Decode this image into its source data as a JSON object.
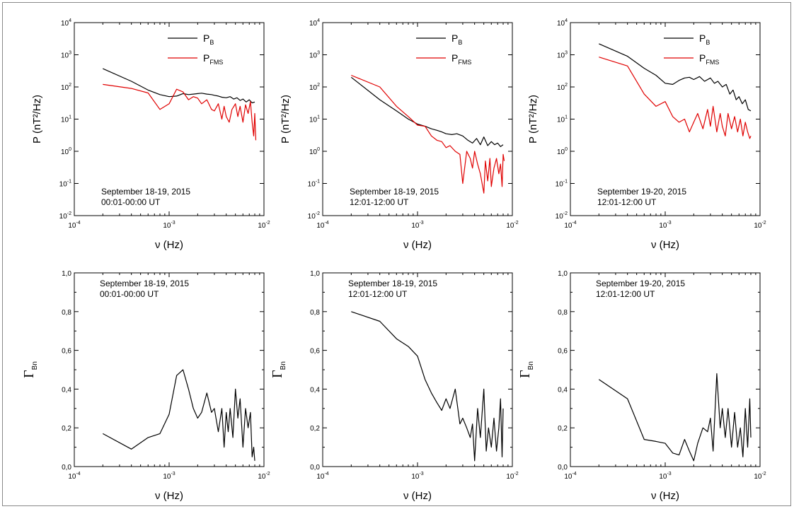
{
  "colors": {
    "frame": "#888888",
    "axis": "#000000",
    "P_B": "#000000",
    "P_FMS": "#e00000",
    "gamma": "#000000"
  },
  "chart_data": [
    {
      "type": "line",
      "panel": "top-left",
      "ylabel": "P (nT²/Hz)",
      "xlabel": "ν (Hz)",
      "x_scale": "log",
      "y_scale": "log",
      "xlim": [
        0.0001,
        0.01
      ],
      "ylim": [
        0.01,
        10000
      ],
      "x_ticks": [
        0.0001,
        0.001,
        0.01
      ],
      "x_tick_labels": [
        "10^-4",
        "10^-3",
        "10^-2"
      ],
      "y_ticks": [
        0.01,
        0.1,
        1,
        10,
        100,
        1000,
        10000
      ],
      "y_tick_labels": [
        "10^-2",
        "10^-1",
        "10^0",
        "10^1",
        "10^2",
        "10^3",
        "10^4"
      ],
      "legend": {
        "position": "top-right",
        "entries": [
          "P_B",
          "P_FMS"
        ]
      },
      "annotation": [
        "September 18-19, 2015",
        "00:01-00:00 UT"
      ],
      "series": [
        {
          "name": "P_B",
          "x": [
            0.0002,
            0.0004,
            0.0006,
            0.0008,
            0.001,
            0.0012,
            0.0014,
            0.0016,
            0.0018,
            0.002,
            0.0022,
            0.0025,
            0.0028,
            0.003,
            0.0033,
            0.0036,
            0.004,
            0.0044,
            0.0048,
            0.0052,
            0.0056,
            0.006,
            0.0065,
            0.007,
            0.0075,
            0.008
          ],
          "values": [
            370,
            150,
            80,
            58,
            50,
            52,
            62,
            58,
            60,
            62,
            64,
            60,
            58,
            55,
            52,
            48,
            46,
            50,
            42,
            46,
            38,
            42,
            34,
            40,
            32,
            34
          ]
        },
        {
          "name": "P_FMS",
          "x": [
            0.0002,
            0.0004,
            0.0006,
            0.0008,
            0.001,
            0.0012,
            0.0014,
            0.0016,
            0.0018,
            0.002,
            0.0022,
            0.0025,
            0.0028,
            0.003,
            0.0033,
            0.0036,
            0.0038,
            0.004,
            0.0043,
            0.0046,
            0.005,
            0.0053,
            0.0056,
            0.006,
            0.0064,
            0.0068,
            0.0072,
            0.0075,
            0.0078,
            0.008,
            0.0082
          ],
          "values": [
            120,
            90,
            65,
            20,
            30,
            85,
            70,
            40,
            50,
            45,
            30,
            40,
            20,
            18,
            30,
            10,
            25,
            12,
            8,
            20,
            30,
            12,
            25,
            8,
            28,
            15,
            35,
            8,
            3,
            15,
            2.2
          ]
        }
      ]
    },
    {
      "type": "line",
      "panel": "top-middle",
      "ylabel": "P (nT²/Hz)",
      "xlabel": "ν (Hz)",
      "x_scale": "log",
      "y_scale": "log",
      "xlim": [
        0.0001,
        0.01
      ],
      "ylim": [
        0.01,
        10000
      ],
      "x_ticks": [
        0.0001,
        0.001,
        0.01
      ],
      "x_tick_labels": [
        "10^-4",
        "10^-3",
        "10^-2"
      ],
      "y_ticks": [
        0.01,
        0.1,
        1,
        10,
        100,
        1000,
        10000
      ],
      "y_tick_labels": [
        "10^-2",
        "10^-1",
        "10^0",
        "10^1",
        "10^2",
        "10^3",
        "10^4"
      ],
      "legend": {
        "position": "top-right",
        "entries": [
          "P_B",
          "P_FMS"
        ]
      },
      "annotation": [
        "September 18-19, 2015",
        "12:01-12:00 UT"
      ],
      "series": [
        {
          "name": "P_B",
          "x": [
            0.0002,
            0.0004,
            0.0006,
            0.0008,
            0.001,
            0.0012,
            0.0014,
            0.0016,
            0.0018,
            0.002,
            0.0023,
            0.0026,
            0.003,
            0.0034,
            0.0038,
            0.0042,
            0.0046,
            0.005,
            0.0055,
            0.006,
            0.0065,
            0.007,
            0.0075,
            0.008
          ],
          "values": [
            200,
            40,
            18,
            10,
            7,
            6,
            5,
            4.5,
            4,
            3.5,
            3.3,
            3.5,
            3,
            2.2,
            1.8,
            2.5,
            1.6,
            2.8,
            1.5,
            2,
            1.6,
            1.8,
            1.4,
            1.6
          ]
        },
        {
          "name": "P_FMS",
          "x": [
            0.0002,
            0.0004,
            0.0006,
            0.0008,
            0.001,
            0.0012,
            0.0014,
            0.0016,
            0.0018,
            0.002,
            0.0022,
            0.0025,
            0.0028,
            0.003,
            0.0033,
            0.0036,
            0.0038,
            0.004,
            0.0043,
            0.0046,
            0.005,
            0.0052,
            0.0055,
            0.0058,
            0.006,
            0.0064,
            0.0068,
            0.0072,
            0.0075,
            0.0078,
            0.008,
            0.0082
          ],
          "values": [
            230,
            100,
            25,
            12,
            6.5,
            6,
            3,
            2.2,
            2,
            1.3,
            1.5,
            1,
            0.8,
            0.1,
            1,
            0.6,
            0.3,
            1,
            0.4,
            0.2,
            0.05,
            0.5,
            0.12,
            0.6,
            0.08,
            0.3,
            0.6,
            0.2,
            0.4,
            0.08,
            0.8,
            0.5
          ]
        }
      ]
    },
    {
      "type": "line",
      "panel": "top-right",
      "ylabel": "P (nT²/Hz)",
      "xlabel": "ν (Hz)",
      "x_scale": "log",
      "y_scale": "log",
      "xlim": [
        0.0001,
        0.01
      ],
      "ylim": [
        0.01,
        10000
      ],
      "x_ticks": [
        0.0001,
        0.001,
        0.01
      ],
      "x_tick_labels": [
        "10^-4",
        "10^-3",
        "10^-2"
      ],
      "y_ticks": [
        0.01,
        0.1,
        1,
        10,
        100,
        1000,
        10000
      ],
      "y_tick_labels": [
        "10^-2",
        "10^-1",
        "10^0",
        "10^1",
        "10^2",
        "10^3",
        "10^4"
      ],
      "legend": {
        "position": "top-right",
        "entries": [
          "P_B",
          "P_FMS"
        ]
      },
      "annotation": [
        "September 19-20, 2015",
        "12:01-12:00 UT"
      ],
      "series": [
        {
          "name": "P_B",
          "x": [
            0.0002,
            0.0004,
            0.0006,
            0.0008,
            0.001,
            0.0012,
            0.0014,
            0.0016,
            0.0018,
            0.002,
            0.0023,
            0.0026,
            0.003,
            0.0033,
            0.0036,
            0.004,
            0.0044,
            0.0048,
            0.0052,
            0.0056,
            0.006,
            0.0065,
            0.007,
            0.0075,
            0.008
          ],
          "values": [
            2200,
            900,
            380,
            230,
            130,
            120,
            160,
            190,
            200,
            170,
            210,
            150,
            190,
            130,
            150,
            100,
            120,
            60,
            80,
            40,
            50,
            30,
            40,
            20,
            18
          ]
        },
        {
          "name": "P_FMS",
          "x": [
            0.0002,
            0.0004,
            0.0006,
            0.0008,
            0.001,
            0.0012,
            0.0014,
            0.0016,
            0.0018,
            0.002,
            0.0022,
            0.0025,
            0.0028,
            0.003,
            0.0032,
            0.0035,
            0.0038,
            0.004,
            0.0043,
            0.0046,
            0.005,
            0.0054,
            0.0058,
            0.0062,
            0.0066,
            0.007,
            0.0074,
            0.0078,
            0.008
          ],
          "values": [
            850,
            450,
            60,
            25,
            35,
            12,
            8,
            10,
            4,
            8,
            15,
            5,
            20,
            6,
            25,
            4,
            15,
            6,
            3,
            15,
            5,
            12,
            4,
            10,
            3,
            8,
            4,
            2.5,
            3
          ]
        }
      ]
    },
    {
      "type": "line",
      "panel": "bottom-left",
      "ylabel": "Γ_Bn",
      "xlabel": "ν (Hz)",
      "x_scale": "log",
      "y_scale": "linear",
      "xlim": [
        0.0001,
        0.01
      ],
      "ylim": [
        0,
        1
      ],
      "x_ticks": [
        0.0001,
        0.001,
        0.01
      ],
      "x_tick_labels": [
        "10^-4",
        "10^-3",
        "10^-2"
      ],
      "y_ticks": [
        0,
        0.2,
        0.4,
        0.6,
        0.8,
        1.0
      ],
      "y_tick_labels": [
        "0,0",
        "0,2",
        "0,4",
        "0,6",
        "0,8",
        "1,0"
      ],
      "annotation": [
        "September 18-19, 2015",
        "00:01-00:00 UT"
      ],
      "series": [
        {
          "name": "",
          "x": [
            0.0002,
            0.0004,
            0.0006,
            0.0008,
            0.001,
            0.0012,
            0.0014,
            0.0016,
            0.0018,
            0.002,
            0.0022,
            0.0025,
            0.0028,
            0.003,
            0.0033,
            0.0036,
            0.0038,
            0.004,
            0.0042,
            0.0044,
            0.0047,
            0.005,
            0.0053,
            0.0056,
            0.006,
            0.0064,
            0.0068,
            0.0072,
            0.0075,
            0.0078,
            0.008
          ],
          "values": [
            0.17,
            0.09,
            0.15,
            0.17,
            0.27,
            0.47,
            0.5,
            0.4,
            0.3,
            0.25,
            0.28,
            0.38,
            0.28,
            0.3,
            0.18,
            0.3,
            0.1,
            0.28,
            0.18,
            0.3,
            0.15,
            0.4,
            0.25,
            0.35,
            0.1,
            0.3,
            0.2,
            0.28,
            0.05,
            0.1,
            0.03
          ]
        }
      ]
    },
    {
      "type": "line",
      "panel": "bottom-middle",
      "ylabel": "Γ_Bn",
      "xlabel": "ν (Hz)",
      "x_scale": "log",
      "y_scale": "linear",
      "xlim": [
        0.0001,
        0.01
      ],
      "ylim": [
        0,
        1
      ],
      "x_ticks": [
        0.0001,
        0.001,
        0.01
      ],
      "x_tick_labels": [
        "10^-4",
        "10^-3",
        "10^-2"
      ],
      "y_ticks": [
        0,
        0.2,
        0.4,
        0.6,
        0.8,
        1.0
      ],
      "y_tick_labels": [
        "0,0",
        "0,2",
        "0,4",
        "0,6",
        "0,8",
        "1,0"
      ],
      "annotation": [
        "September 18-19, 2015",
        "12:01-12:00 UT"
      ],
      "series": [
        {
          "name": "",
          "x": [
            0.0002,
            0.0004,
            0.0006,
            0.0008,
            0.001,
            0.0012,
            0.0014,
            0.0016,
            0.0018,
            0.002,
            0.0022,
            0.0025,
            0.0028,
            0.003,
            0.0033,
            0.0036,
            0.0038,
            0.004,
            0.0043,
            0.0046,
            0.005,
            0.0053,
            0.0056,
            0.006,
            0.0064,
            0.0068,
            0.0072,
            0.0075,
            0.0078,
            0.008
          ],
          "values": [
            0.8,
            0.75,
            0.66,
            0.62,
            0.57,
            0.45,
            0.38,
            0.33,
            0.29,
            0.35,
            0.3,
            0.4,
            0.22,
            0.25,
            0.2,
            0.15,
            0.22,
            0.03,
            0.3,
            0.15,
            0.4,
            0.08,
            0.2,
            0.1,
            0.25,
            0.08,
            0.2,
            0.35,
            0.05,
            0.3
          ]
        }
      ]
    },
    {
      "type": "line",
      "panel": "bottom-right",
      "ylabel": "Γ_Bn",
      "xlabel": "ν (Hz)",
      "x_scale": "log",
      "y_scale": "linear",
      "xlim": [
        0.0001,
        0.01
      ],
      "ylim": [
        0,
        1
      ],
      "x_ticks": [
        0.0001,
        0.001,
        0.01
      ],
      "x_tick_labels": [
        "10^-4",
        "10^-3",
        "10^-2"
      ],
      "y_ticks": [
        0,
        0.2,
        0.4,
        0.6,
        0.8,
        1.0
      ],
      "y_tick_labels": [
        "0,0",
        "0,2",
        "0,4",
        "0,6",
        "0,8",
        "1,0"
      ],
      "annotation": [
        "September 19-20, 2015",
        "12:01-12:00 UT"
      ],
      "series": [
        {
          "name": "",
          "x": [
            0.0002,
            0.0004,
            0.0006,
            0.0008,
            0.001,
            0.0012,
            0.0014,
            0.0016,
            0.0018,
            0.002,
            0.0022,
            0.0025,
            0.0028,
            0.003,
            0.0032,
            0.0035,
            0.0038,
            0.004,
            0.0043,
            0.0046,
            0.005,
            0.0054,
            0.0058,
            0.0062,
            0.0066,
            0.007,
            0.0074,
            0.0078,
            0.008
          ],
          "values": [
            0.45,
            0.35,
            0.14,
            0.13,
            0.12,
            0.07,
            0.06,
            0.14,
            0.08,
            0.03,
            0.12,
            0.2,
            0.18,
            0.25,
            0.08,
            0.48,
            0.2,
            0.3,
            0.15,
            0.3,
            0.1,
            0.28,
            0.1,
            0.2,
            0.05,
            0.3,
            0.1,
            0.35,
            0.15
          ]
        }
      ]
    }
  ]
}
